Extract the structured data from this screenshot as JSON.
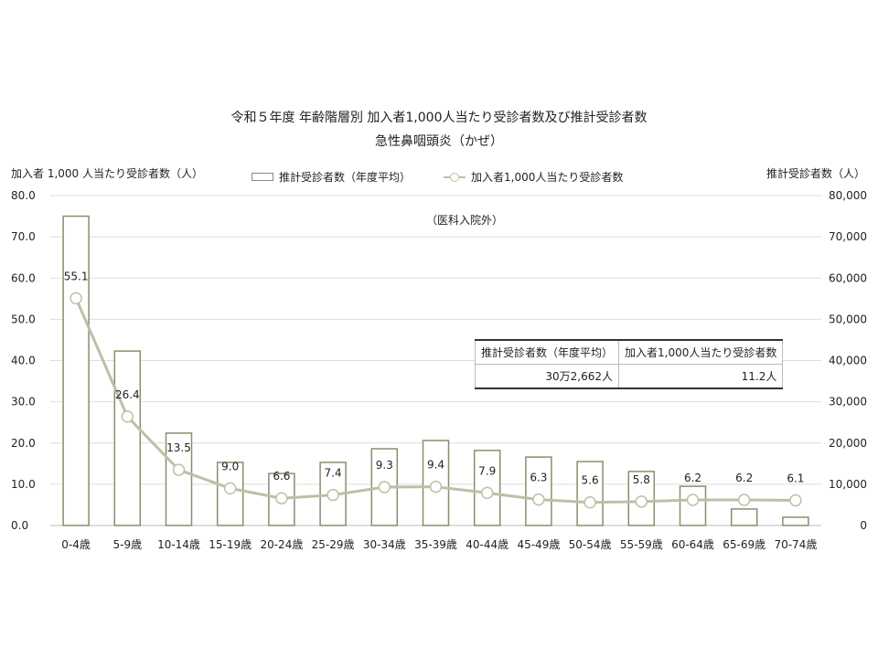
{
  "chart_data": {
    "type": "bar+line",
    "title": "令和５年度 年齢階層別 加入者1,000人当たり受診者数及び推計受診者数",
    "subtitle": "急性鼻咽頭炎（かぜ）",
    "note": "（医科入院外）",
    "ylabel_left": "加入者 1,000 人当たり受診者数（人）",
    "ylabel_right": "推計受診者数（人）",
    "ylim_left": [
      0,
      80
    ],
    "ylim_right": [
      0,
      80000
    ],
    "yticks_left": [
      "0.0",
      "10.0",
      "20.0",
      "30.0",
      "40.0",
      "50.0",
      "60.0",
      "70.0",
      "80.0"
    ],
    "yticks_right": [
      "0",
      "10,000",
      "20,000",
      "30,000",
      "40,000",
      "50,000",
      "60,000",
      "70,000",
      "80,000"
    ],
    "grid": true,
    "legend_position": "top",
    "categories": [
      "0-4歳",
      "5-9歳",
      "10-14歳",
      "15-19歳",
      "20-24歳",
      "25-29歳",
      "30-34歳",
      "35-39歳",
      "40-44歳",
      "45-49歳",
      "50-54歳",
      "55-59歳",
      "60-64歳",
      "65-69歳",
      "70-74歳"
    ],
    "series": [
      {
        "name": "推計受診者数（年度平均）",
        "type": "bar",
        "axis": "right",
        "color": "#8c8c6e",
        "values": [
          75000,
          42300,
          22400,
          15300,
          12600,
          15300,
          18600,
          20600,
          18200,
          16600,
          15500,
          13100,
          9500,
          4000,
          2000
        ]
      },
      {
        "name": "加入者1,000人当たり受診者数",
        "type": "line",
        "axis": "left",
        "color": "#bfbfa8",
        "values": [
          55.1,
          26.4,
          13.5,
          9.0,
          6.6,
          7.4,
          9.3,
          9.4,
          7.9,
          6.3,
          5.6,
          5.8,
          6.2,
          6.2,
          6.1
        ],
        "labels": [
          "55.1",
          "26.4",
          "13.5",
          "9.0",
          "6.6",
          "7.4",
          "9.3",
          "9.4",
          "7.9",
          "6.3",
          "5.6",
          "5.8",
          "6.2",
          "6.2",
          "6.1"
        ]
      }
    ]
  },
  "summary_table": {
    "headers": [
      "推計受診者数（年度平均）",
      "加入者1,000人当たり受診者数"
    ],
    "values": [
      "30万2,662人",
      "11.2人"
    ]
  }
}
